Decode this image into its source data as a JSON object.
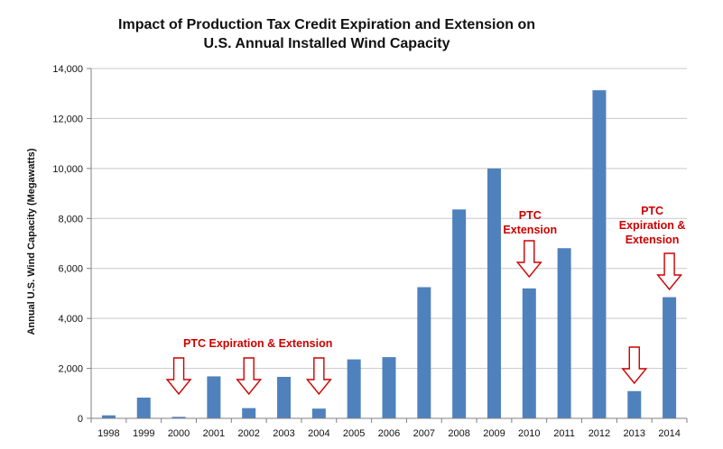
{
  "chart_data": {
    "type": "bar",
    "title_lines": [
      "Impact of Production Tax Credit Expiration and Extension on",
      "U.S. Annual Installed Wind Capacity"
    ],
    "ylabel": "Annual U.S. Wind Capacity (Megawatts)",
    "xlabel": "",
    "categories": [
      "1998",
      "1999",
      "2000",
      "2001",
      "2002",
      "2003",
      "2004",
      "2005",
      "2006",
      "2007",
      "2008",
      "2009",
      "2010",
      "2011",
      "2012",
      "2013",
      "2014"
    ],
    "values": [
      120,
      830,
      60,
      1680,
      410,
      1660,
      390,
      2360,
      2450,
      5250,
      8360,
      10000,
      5200,
      6810,
      13130,
      1090,
      4850
    ],
    "ylim": [
      0,
      14000
    ],
    "yticks": [
      0,
      2000,
      4000,
      6000,
      8000,
      10000,
      12000,
      14000
    ],
    "ytick_labels": [
      "0",
      "2,000",
      "4,000",
      "6,000",
      "8,000",
      "10,000",
      "12,000",
      "14,000"
    ],
    "grid": true,
    "legend": false,
    "bar_color": "#4f81bd",
    "annotations": [
      {
        "lines": [
          "PTC Expiration & Extension"
        ],
        "arrow_categories": [
          "2000",
          "2002",
          "2004"
        ]
      },
      {
        "lines": [
          "PTC",
          "Extension"
        ],
        "arrow_categories": [
          "2010"
        ]
      },
      {
        "lines": [
          "PTC",
          "Expiration &",
          "Extension"
        ],
        "arrow_categories": [
          "2014"
        ]
      },
      {
        "lines": [],
        "arrow_categories": [
          "2013"
        ]
      }
    ],
    "annotation_color": "#cc0000"
  }
}
